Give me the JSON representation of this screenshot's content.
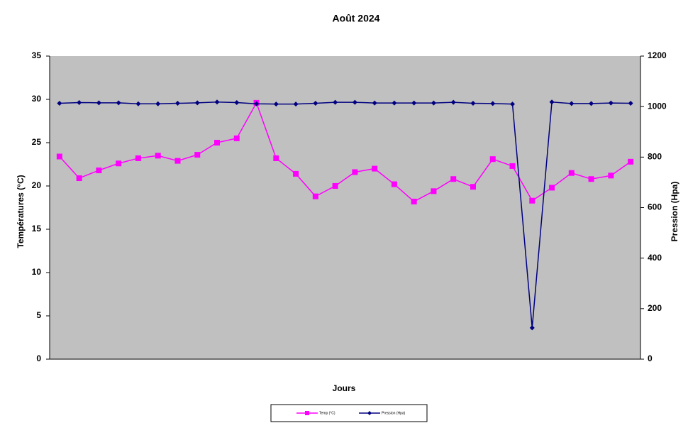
{
  "chart_data": {
    "type": "line",
    "title": "Août 2024",
    "xlabel": "Jours",
    "ylabel": "Températures (°C)",
    "y2label": "Pression (Hpa)",
    "categories": [
      null,
      null,
      null,
      null,
      null,
      null,
      null,
      null,
      null,
      null,
      null,
      null,
      null,
      null,
      null,
      null,
      null,
      null,
      null,
      null,
      null,
      null,
      null,
      null,
      null,
      null,
      null,
      null,
      null,
      null
    ],
    "series": [
      {
        "name": "Temp (°C)",
        "color": "#ff00ff",
        "marker": "square",
        "values": [
          23.4,
          20.9,
          21.8,
          22.6,
          23.2,
          23.5,
          22.9,
          23.6,
          25.0,
          25.5,
          29.6,
          23.2,
          21.4,
          18.8,
          20.0,
          21.6,
          22.0,
          20.2,
          18.2,
          19.4,
          20.8,
          19.9,
          23.1,
          22.3,
          18.3,
          19.8,
          21.5,
          20.8,
          21.2,
          22.8
        ]
      },
      {
        "name": "Pression (Hpa)",
        "color": "#000080",
        "marker": "diamond",
        "axis": "y2",
        "values": [
          1013,
          1016,
          1015,
          1015,
          1011,
          1011,
          1013,
          1015,
          1018,
          1016,
          1011,
          1010,
          1010,
          1013,
          1017,
          1017,
          1014,
          1014,
          1014,
          1014,
          1017,
          1013,
          1012,
          1010,
          124,
          1018,
          1012,
          1012,
          1014,
          1013
        ]
      }
    ],
    "ylim": [
      0,
      35
    ],
    "yticks": [
      0,
      5,
      10,
      15,
      20,
      25,
      30,
      35
    ],
    "y2lim": [
      0,
      1200
    ],
    "y2ticks": [
      0,
      200,
      400,
      600,
      800,
      1000,
      1200
    ],
    "grid": false,
    "legend": "bottom"
  }
}
